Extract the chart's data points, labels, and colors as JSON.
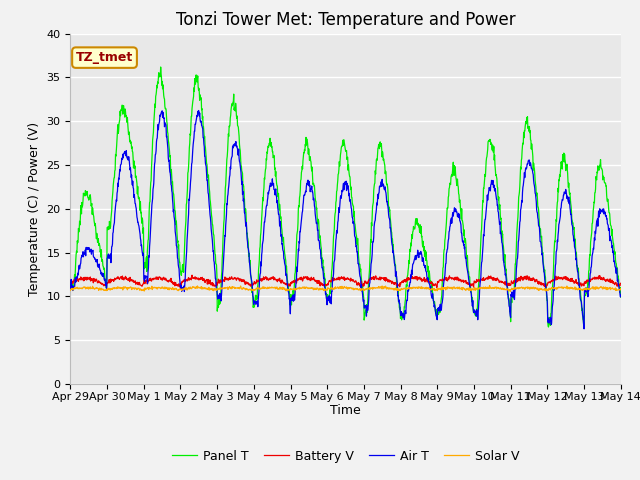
{
  "title": "Tonzi Tower Met: Temperature and Power",
  "xlabel": "Time",
  "ylabel": "Temperature (C) / Power (V)",
  "annotation": "TZ_tmet",
  "ylim": [
    0,
    40
  ],
  "yticks": [
    0,
    5,
    10,
    15,
    20,
    25,
    30,
    35,
    40
  ],
  "xtick_labels": [
    "Apr 29",
    "Apr 30",
    "May 1",
    "May 2",
    "May 3",
    "May 4",
    "May 5",
    "May 6",
    "May 7",
    "May 8",
    "May 9",
    "May 10",
    "May 11",
    "May 12",
    "May 13",
    "May 14"
  ],
  "n_xticks": 16,
  "xlim": [
    0,
    15
  ],
  "fig_bg": "#f2f2f2",
  "plot_bg": "#e8e8e8",
  "grid_color": "#ffffff",
  "line_colors": {
    "panel_t": "#00ee00",
    "battery_v": "#ee0000",
    "air_t": "#0000ee",
    "solar_v": "#ffaa00"
  },
  "legend_labels": [
    "Panel T",
    "Battery V",
    "Air T",
    "Solar V"
  ],
  "title_fontsize": 12,
  "axis_label_fontsize": 9,
  "tick_fontsize": 8,
  "annotation_fontsize": 9,
  "target_peaks_panel": [
    22,
    31.5,
    35.5,
    35.0,
    32.5,
    27.5,
    27.5,
    27.5,
    27.5,
    18.5,
    24.5,
    28.0,
    30.0,
    26.0,
    25.0
  ],
  "target_mins_panel": [
    11.0,
    17.5,
    13.0,
    12.5,
    8.5,
    9.0,
    9.5,
    9.5,
    7.5,
    7.5,
    8.0,
    7.5,
    9.5,
    6.5,
    10.0
  ],
  "target_peaks_air": [
    15.5,
    26.5,
    31.0,
    31.0,
    27.5,
    23.0,
    23.0,
    23.0,
    23.0,
    15.0,
    20.0,
    23.0,
    25.5,
    22.0,
    20.0
  ],
  "target_mins_air": [
    11.0,
    14.0,
    11.0,
    10.0,
    9.0,
    8.5,
    9.0,
    9.0,
    8.0,
    7.5,
    8.0,
    7.5,
    9.5,
    6.5,
    10.0
  ],
  "n_days": 15,
  "pts_per_day": 96,
  "seed": 12
}
